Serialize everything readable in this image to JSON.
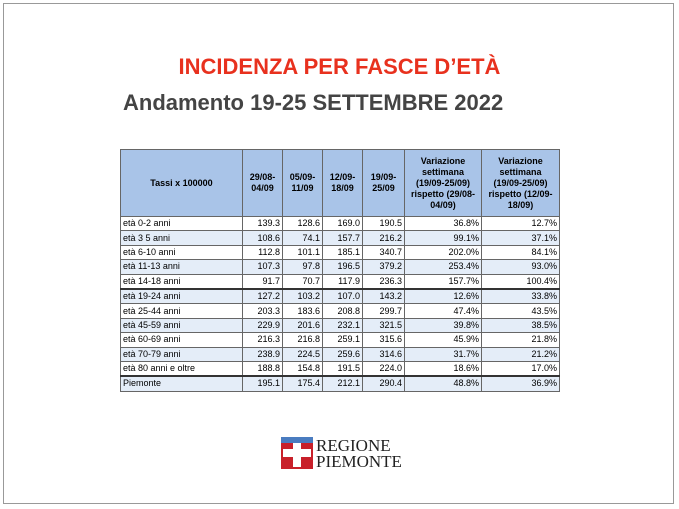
{
  "header": {
    "title": "INCIDENZA PER FASCE D’ETÀ",
    "subtitle": "Andamento 19-25 SETTEMBRE 2022"
  },
  "table": {
    "columns": [
      "Tassi x 100000",
      "29/08-04/09",
      "05/09-11/09",
      "12/09-18/09",
      "19/09-25/09",
      "Variazione settimana (19/09-25/09) rispetto (29/08-04/09)",
      "Variazione settimana (19/09-25/09) rispetto (12/09-18/09)"
    ],
    "rows": [
      [
        "età 0-2 anni",
        "139.3",
        "128.6",
        "169.0",
        "190.5",
        "36.8%",
        "12.7%"
      ],
      [
        "età 3 5 anni",
        "108.6",
        "74.1",
        "157.7",
        "216.2",
        "99.1%",
        "37.1%"
      ],
      [
        "età 6-10 anni",
        "112.8",
        "101.1",
        "185.1",
        "340.7",
        "202.0%",
        "84.1%"
      ],
      [
        "età 11-13 anni",
        "107.3",
        "97.8",
        "196.5",
        "379.2",
        "253.4%",
        "93.0%"
      ],
      [
        "età 14-18 anni",
        "91.7",
        "70.7",
        "117.9",
        "236.3",
        "157.7%",
        "100.4%"
      ],
      [
        "età 19-24 anni",
        "127.2",
        "103.2",
        "107.0",
        "143.2",
        "12.6%",
        "33.8%"
      ],
      [
        "età 25-44 anni",
        "203.3",
        "183.6",
        "208.8",
        "299.7",
        "47.4%",
        "43.5%"
      ],
      [
        "età 45-59 anni",
        "229.9",
        "201.6",
        "232.1",
        "321.5",
        "39.8%",
        "38.5%"
      ],
      [
        "età 60-69 anni",
        "216.3",
        "216.8",
        "259.1",
        "315.6",
        "45.9%",
        "21.8%"
      ],
      [
        "età 70-79 anni",
        "238.9",
        "224.5",
        "259.6",
        "314.6",
        "31.7%",
        "21.2%"
      ],
      [
        "età 80 anni e oltre",
        "188.8",
        "154.8",
        "191.5",
        "224.0",
        "18.6%",
        "17.0%"
      ],
      [
        "Piemonte",
        "195.1",
        "175.4",
        "212.1",
        "290.4",
        "48.8%",
        "36.9%"
      ]
    ]
  },
  "logo": {
    "line1": "REGIONE",
    "line2": "PIEMONTE"
  }
}
